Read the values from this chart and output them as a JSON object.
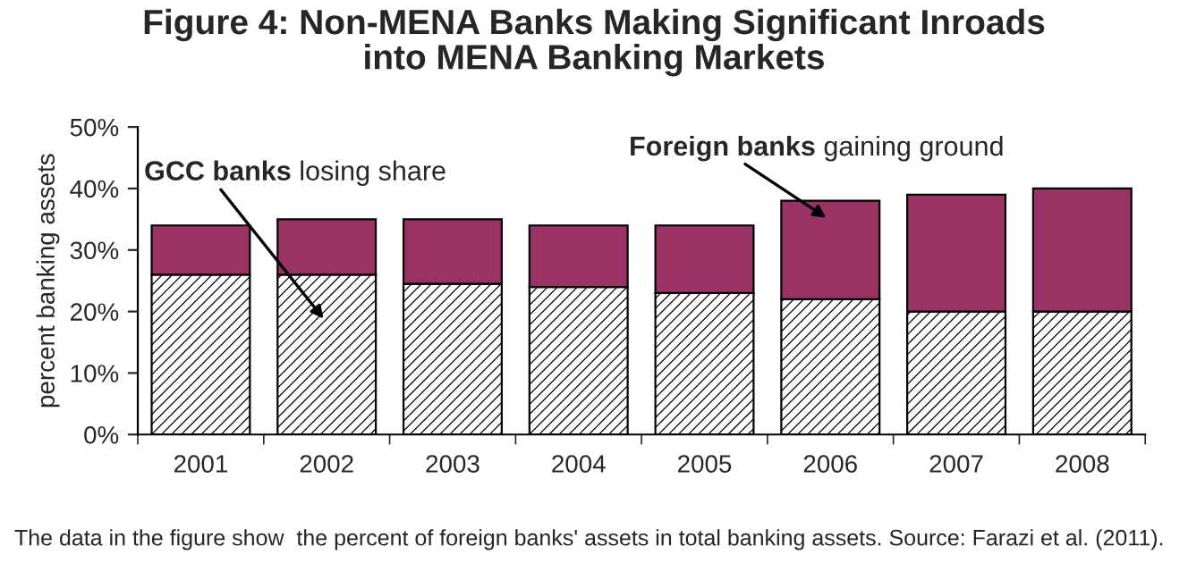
{
  "chart_data": {
    "type": "bar",
    "stacked": true,
    "title": "Figure 4: Non-MENA Banks Making Significant Inroads\ninto MENA Banking Markets",
    "ylabel": "percent banking assets",
    "categories": [
      "2001",
      "2002",
      "2003",
      "2004",
      "2005",
      "2006",
      "2007",
      "2008"
    ],
    "series": [
      {
        "name": "GCC banks",
        "color": "#000000",
        "values": [
          26,
          26,
          24.5,
          24,
          23,
          22,
          20,
          20
        ]
      },
      {
        "name": "Foreign banks",
        "color": "#993366",
        "values": [
          8,
          9,
          10.5,
          10,
          11,
          16,
          19,
          20
        ]
      }
    ],
    "ylim": [
      0,
      50
    ],
    "yticks": [
      {
        "value": 0,
        "label": "0%"
      },
      {
        "value": 10,
        "label": "10%"
      },
      {
        "value": 20,
        "label": "20%"
      },
      {
        "value": 30,
        "label": "30%"
      },
      {
        "value": 40,
        "label": "40%"
      },
      {
        "value": 50,
        "label": "50%"
      }
    ],
    "grid": false,
    "legend": false,
    "annotations": [
      "losing share",
      "gaining ground",
      "The data in the figure show  the percent of foreign banks' assets in total banking assets. Source: Farazi et al. (2011)."
    ]
  }
}
